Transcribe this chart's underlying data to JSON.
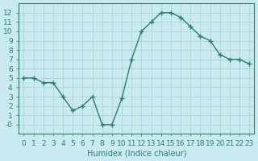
{
  "x": [
    0,
    1,
    2,
    3,
    4,
    5,
    6,
    7,
    8,
    9,
    10,
    11,
    12,
    13,
    14,
    15,
    16,
    17,
    18,
    19,
    20,
    21,
    22,
    23
  ],
  "y": [
    5,
    5,
    4.5,
    4.5,
    3,
    1.5,
    2,
    3,
    0,
    0,
    2.8,
    7,
    10,
    11,
    12,
    12,
    11.5,
    10.5,
    9.5,
    9,
    7.5,
    7,
    7,
    6.5
  ],
  "line_color": "#2e7d6e",
  "marker": "+",
  "marker_size": 4,
  "bg_color": "#c8eaf0",
  "grid_color": "#aacfcf",
  "xlabel": "Humidex (Indice chaleur)",
  "ylim": [
    -1,
    13
  ],
  "xlim": [
    -0.5,
    23.5
  ],
  "yticks": [
    0,
    1,
    2,
    3,
    4,
    5,
    6,
    7,
    8,
    9,
    10,
    11,
    12
  ],
  "xticks": [
    0,
    1,
    2,
    3,
    4,
    5,
    6,
    7,
    8,
    9,
    10,
    11,
    12,
    13,
    14,
    15,
    16,
    17,
    18,
    19,
    20,
    21,
    22,
    23
  ],
  "title_color": "#2e7d6e",
  "axis_color": "#2e7d6e",
  "tick_label_color": "#2e7d6e",
  "xlabel_color": "#2e7d6e",
  "label_fontsize": 7,
  "tick_fontsize": 6.5
}
